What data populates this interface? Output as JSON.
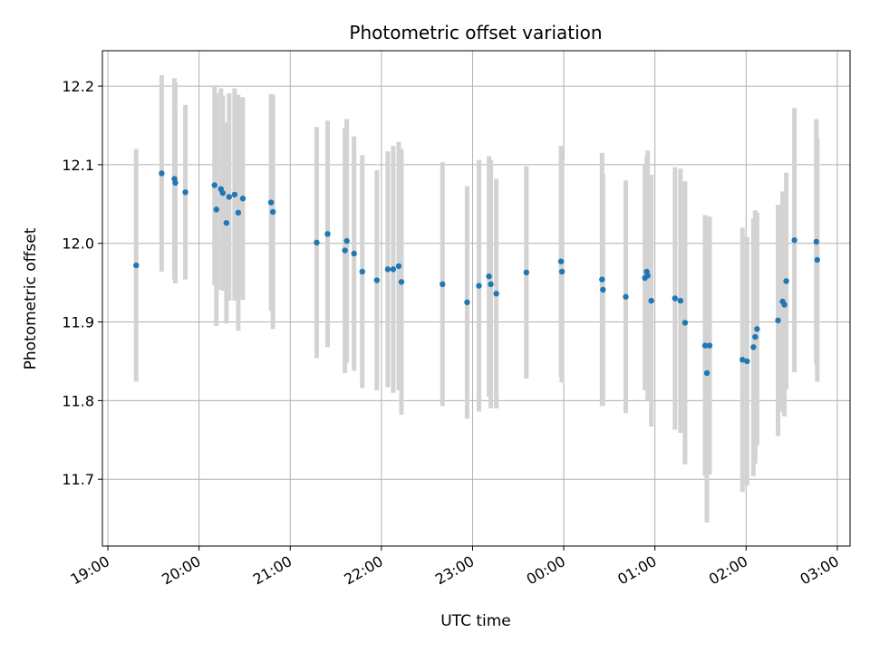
{
  "chart_data": {
    "type": "scatter",
    "title": "Photometric offset variation",
    "xlabel": "UTC time",
    "ylabel": "Photometric offset",
    "x_unit": "hours since 19:00 UTC",
    "xlim": [
      -0.06,
      8.14
    ],
    "ylim": [
      11.615,
      12.245
    ],
    "x_ticks": [
      0,
      1,
      2,
      3,
      4,
      5,
      6,
      7,
      8
    ],
    "x_tick_labels": [
      "19:00",
      "20:00",
      "21:00",
      "22:00",
      "23:00",
      "00:00",
      "01:00",
      "02:00",
      "03:00"
    ],
    "y_ticks": [
      11.7,
      11.8,
      11.9,
      12.0,
      12.1,
      12.2
    ],
    "y_tick_labels": [
      "11.7",
      "11.8",
      "11.9",
      "12.0",
      "12.1",
      "12.2"
    ],
    "grid": true,
    "colors": {
      "points": "#1f77b4",
      "error_bars": "#d3d3d3",
      "grid": "#b0b0b0"
    },
    "series": [
      {
        "x": [
          0.31,
          0.59,
          0.73,
          0.74,
          0.85,
          1.17,
          1.19,
          1.24,
          1.26,
          1.3,
          1.33,
          1.39,
          1.43,
          1.48,
          1.79,
          1.81,
          2.29,
          2.41,
          2.6,
          2.62,
          2.7,
          2.79,
          2.95,
          3.07,
          3.13,
          3.19,
          3.22,
          3.67,
          3.94,
          4.07,
          4.18,
          4.2,
          4.26,
          4.59,
          4.97,
          4.98,
          5.42,
          5.43,
          5.68,
          5.89,
          5.91,
          5.92,
          5.96,
          6.22,
          6.28,
          6.33,
          6.55,
          6.57,
          6.6,
          6.96,
          7.01,
          7.08,
          7.1,
          7.12,
          7.35,
          7.4,
          7.42,
          7.44,
          7.53,
          7.77,
          7.78
        ],
        "y": [
          11.972,
          12.089,
          12.082,
          12.077,
          12.065,
          12.074,
          12.043,
          12.069,
          12.064,
          12.026,
          12.059,
          12.062,
          12.039,
          12.057,
          12.052,
          12.04,
          12.001,
          12.012,
          11.991,
          12.003,
          11.987,
          11.964,
          11.953,
          11.967,
          11.967,
          11.971,
          11.951,
          11.948,
          11.925,
          11.946,
          11.958,
          11.948,
          11.936,
          11.963,
          11.977,
          11.964,
          11.954,
          11.941,
          11.932,
          11.956,
          11.964,
          11.959,
          11.927,
          11.93,
          11.927,
          11.899,
          11.87,
          11.835,
          11.87,
          11.852,
          11.85,
          11.868,
          11.881,
          11.891,
          11.902,
          11.926,
          11.922,
          11.952,
          12.004,
          12.002,
          11.979
        ],
        "err": [
          0.148,
          0.125,
          0.128,
          0.128,
          0.111,
          0.127,
          0.148,
          0.128,
          0.124,
          0.128,
          0.132,
          0.135,
          0.15,
          0.129,
          0.138,
          0.149,
          0.147,
          0.144,
          0.156,
          0.155,
          0.149,
          0.148,
          0.14,
          0.15,
          0.157,
          0.158,
          0.169,
          0.155,
          0.148,
          0.16,
          0.153,
          0.158,
          0.146,
          0.135,
          0.147,
          0.141,
          0.161,
          0.147,
          0.148,
          0.143,
          0.147,
          0.159,
          0.16,
          0.167,
          0.168,
          0.18,
          0.166,
          0.19,
          0.164,
          0.168,
          0.158,
          0.164,
          0.161,
          0.148,
          0.147,
          0.14,
          0.142,
          0.138,
          0.168,
          0.156,
          0.155
        ]
      }
    ]
  }
}
